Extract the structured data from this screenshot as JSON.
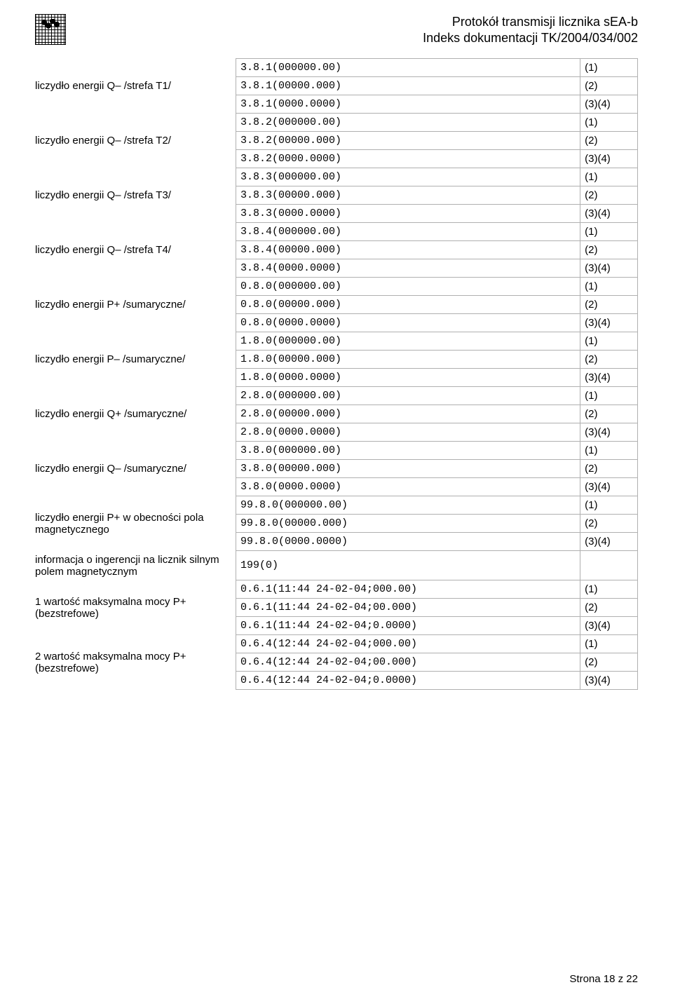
{
  "header": {
    "line1": "Protokół transmisji licznika sEA-b",
    "line2": "Indeks dokumentacji TK/2004/034/002"
  },
  "groups": [
    {
      "label": "liczydło energii Q– /strefa T1/",
      "rows": [
        {
          "code": "3.8.1(000000.00)",
          "note": "(1)"
        },
        {
          "code": "3.8.1(00000.000)",
          "note": "(2)"
        },
        {
          "code": "3.8.1(0000.0000)",
          "note": "(3)(4)"
        }
      ]
    },
    {
      "label": "liczydło energii Q– /strefa T2/",
      "rows": [
        {
          "code": "3.8.2(000000.00)",
          "note": "(1)"
        },
        {
          "code": "3.8.2(00000.000)",
          "note": "(2)"
        },
        {
          "code": "3.8.2(0000.0000)",
          "note": "(3)(4)"
        }
      ]
    },
    {
      "label": "liczydło energii Q– /strefa T3/",
      "rows": [
        {
          "code": "3.8.3(000000.00)",
          "note": "(1)"
        },
        {
          "code": "3.8.3(00000.000)",
          "note": "(2)"
        },
        {
          "code": "3.8.3(0000.0000)",
          "note": "(3)(4)"
        }
      ]
    },
    {
      "label": "liczydło energii Q– /strefa T4/",
      "rows": [
        {
          "code": "3.8.4(000000.00)",
          "note": "(1)"
        },
        {
          "code": "3.8.4(00000.000)",
          "note": "(2)"
        },
        {
          "code": "3.8.4(0000.0000)",
          "note": "(3)(4)"
        }
      ]
    },
    {
      "label": "liczydło energii P+ /sumaryczne/",
      "rows": [
        {
          "code": "0.8.0(000000.00)",
          "note": "(1)"
        },
        {
          "code": "0.8.0(00000.000)",
          "note": "(2)"
        },
        {
          "code": "0.8.0(0000.0000)",
          "note": "(3)(4)"
        }
      ]
    },
    {
      "label": "liczydło energii P– /sumaryczne/",
      "rows": [
        {
          "code": "1.8.0(000000.00)",
          "note": "(1)"
        },
        {
          "code": "1.8.0(00000.000)",
          "note": "(2)"
        },
        {
          "code": "1.8.0(0000.0000)",
          "note": "(3)(4)"
        }
      ]
    },
    {
      "label": "liczydło energii Q+ /sumaryczne/",
      "rows": [
        {
          "code": "2.8.0(000000.00)",
          "note": "(1)"
        },
        {
          "code": "2.8.0(00000.000)",
          "note": "(2)"
        },
        {
          "code": "2.8.0(0000.0000)",
          "note": "(3)(4)"
        }
      ]
    },
    {
      "label": "liczydło energii Q– /sumaryczne/",
      "rows": [
        {
          "code": "3.8.0(000000.00)",
          "note": "(1)"
        },
        {
          "code": "3.8.0(00000.000)",
          "note": "(2)"
        },
        {
          "code": "3.8.0(0000.0000)",
          "note": "(3)(4)"
        }
      ]
    },
    {
      "label": "liczydło energii P+ w obecności pola magnetycznego",
      "rows": [
        {
          "code": "99.8.0(000000.00)",
          "note": "(1)"
        },
        {
          "code": "99.8.0(00000.000)",
          "note": "(2)"
        },
        {
          "code": "99.8.0(0000.0000)",
          "note": "(3)(4)"
        }
      ]
    },
    {
      "label": "informacja o ingerencji na licznik silnym polem magnetycznym",
      "rows": [
        {
          "code": "199(0)",
          "note": ""
        }
      ]
    },
    {
      "label": "1 wartość maksymalna mocy P+ (bezstrefowe)",
      "rows": [
        {
          "code": "0.6.1(11:44 24-02-04;000.00)",
          "note": "(1)"
        },
        {
          "code": "0.6.1(11:44 24-02-04;00.000)",
          "note": "(2)"
        },
        {
          "code": "0.6.1(11:44 24-02-04;0.0000)",
          "note": "(3)(4)"
        }
      ]
    },
    {
      "label": "2 wartość maksymalna mocy P+ (bezstrefowe)",
      "rows": [
        {
          "code": "0.6.4(12:44 24-02-04;000.00)",
          "note": "(1)"
        },
        {
          "code": "0.6.4(12:44 24-02-04;00.000)",
          "note": "(2)"
        },
        {
          "code": "0.6.4(12:44 24-02-04;0.0000)",
          "note": "(3)(4)"
        }
      ]
    }
  ],
  "footer": "Strona 18 z 22"
}
